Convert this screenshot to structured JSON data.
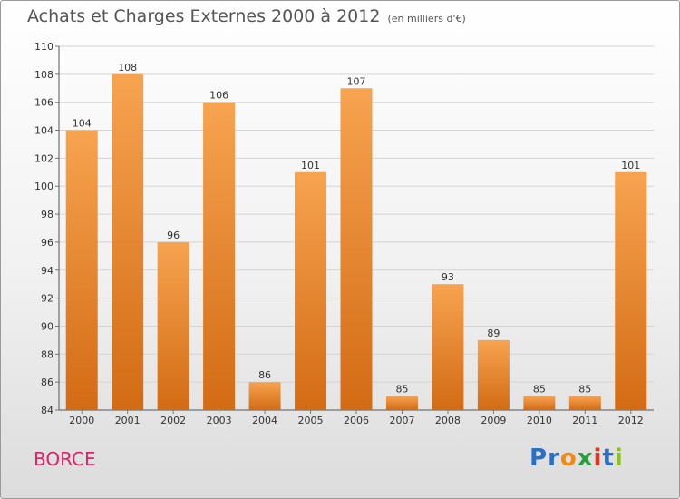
{
  "header": {
    "title": "Achats et Charges Externes 2000 à 2012",
    "unit": "(en milliers d'€)"
  },
  "footer": {
    "place": "BORCE",
    "brand": "Proxiti"
  },
  "colors": {
    "bar_top": "#f7a350",
    "bar_bottom": "#d36b14",
    "place": "#dd2266",
    "brand_letters": [
      "#2a6fc6",
      "#2a6fc6",
      "#f28a12",
      "#2a9d3c",
      "#e0361e",
      "#2a6fc6",
      "#8cbf26"
    ]
  },
  "chart_data": {
    "type": "bar",
    "title": "Achats et Charges Externes 2000 à 2012",
    "subtitle": "(en milliers d'€)",
    "categories": [
      "2000",
      "2001",
      "2002",
      "2003",
      "2004",
      "2005",
      "2006",
      "2007",
      "2008",
      "2009",
      "2010",
      "2011",
      "2012"
    ],
    "values": [
      104,
      108,
      96,
      106,
      86,
      101,
      107,
      85,
      93,
      89,
      85,
      85,
      101
    ],
    "ylim": [
      84,
      110
    ],
    "yticks": [
      84,
      86,
      88,
      90,
      92,
      94,
      96,
      98,
      100,
      102,
      104,
      106,
      108,
      110
    ],
    "grid": true,
    "xlabel": "",
    "ylabel": ""
  }
}
